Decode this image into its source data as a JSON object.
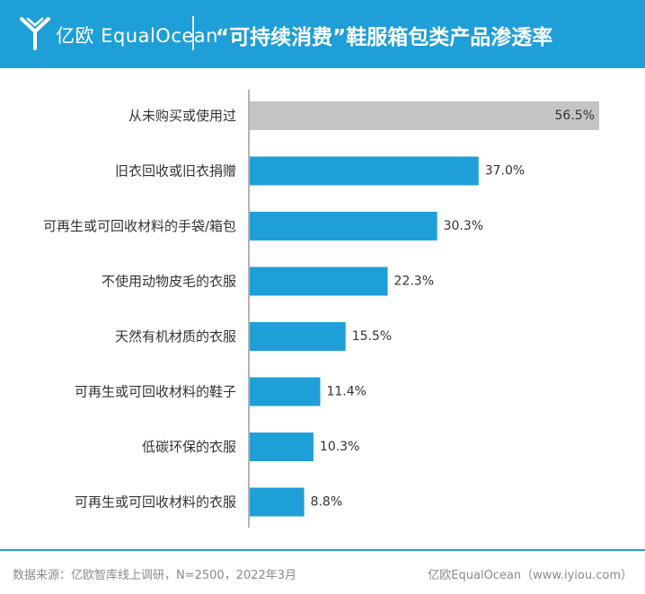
{
  "header": {
    "brand": "亿欧 EqualOcean",
    "title": "“可持续消费”鞋服箱包类产品渗透率",
    "accent_color": "#1f9fd7"
  },
  "chart_data": {
    "type": "bar",
    "orientation": "horizontal",
    "title": "“可持续消费”鞋服箱包类产品渗透率",
    "categories": [
      "从未购买或使用过",
      "旧衣回收或旧衣捐赠",
      "可再生或可回收材料的手袋/箱包",
      "不使用动物皮毛的衣服",
      "天然有机材质的衣服",
      "可再生或可回收材料的鞋子",
      "低碳环保的衣服",
      "可再生或可回收材料的衣服"
    ],
    "values": [
      56.5,
      37.0,
      30.3,
      22.3,
      15.5,
      11.4,
      10.3,
      8.8
    ],
    "data_labels": [
      "56.5%",
      "37.0%",
      "30.3%",
      "22.3%",
      "15.5%",
      "11.4%",
      "10.3%",
      "8.8%"
    ],
    "unit": "%",
    "xlim": [
      0,
      56.5
    ],
    "colors": [
      "#c4c4c4",
      "#1f9fd7",
      "#1f9fd7",
      "#1f9fd7",
      "#1f9fd7",
      "#1f9fd7",
      "#1f9fd7",
      "#1f9fd7"
    ],
    "grid": false,
    "legend": "none"
  },
  "footer": {
    "source": "数据来源：亿欧智库线上调研，N=2500，2022年3月",
    "brand": "亿欧EqualOcean（www.iyiou.com）"
  }
}
